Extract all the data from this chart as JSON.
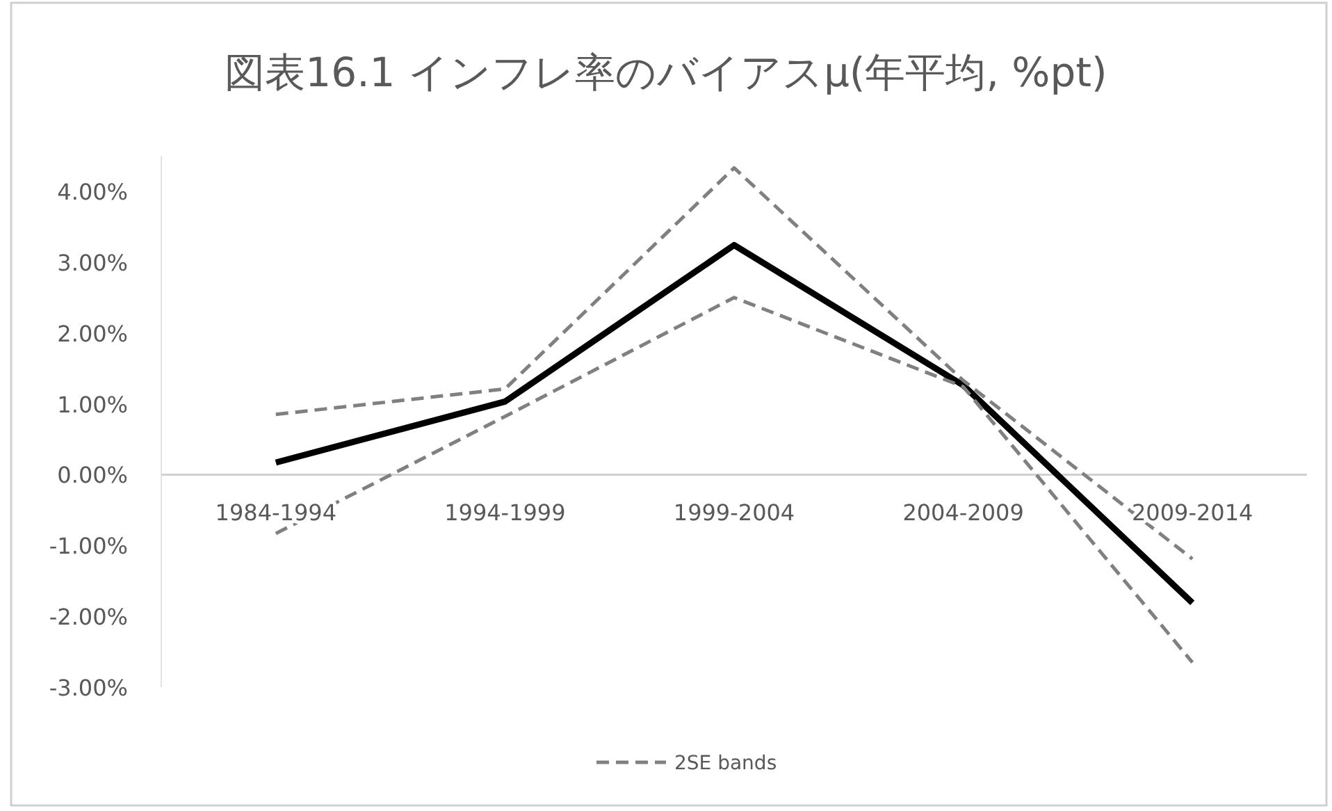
{
  "chart_data": {
    "type": "line",
    "title": "図表16.1 インフレ率のバイアスμ(年平均, %pt)",
    "categories": [
      "1984-1994",
      "1994-1999",
      "1999-2004",
      "2004-2009",
      "2009-2014"
    ],
    "series": [
      {
        "color": "#000000",
        "values": [
          0.17,
          1.03,
          3.24,
          1.26,
          -1.81
        ]
      },
      {
        "name": "2SE bands",
        "color": "#808080",
        "line_style": "dashed",
        "values": [
          0.85,
          1.21,
          4.33,
          1.33,
          -1.19
        ]
      },
      {
        "color": "#808080",
        "line_style": "dashed",
        "values": [
          -0.83,
          0.82,
          2.5,
          1.24,
          -2.65
        ]
      }
    ],
    "ylim": [
      -3,
      4.5
    ],
    "yticks": [
      {
        "value": -3,
        "label": "-3.00%"
      },
      {
        "value": -2,
        "label": "-2.00%"
      },
      {
        "value": -1,
        "label": "-1.00%"
      },
      {
        "value": 0,
        "label": "0.00%"
      },
      {
        "value": 1,
        "label": "1.00%"
      },
      {
        "value": 2,
        "label": "2.00%"
      },
      {
        "value": 3,
        "label": "3.00%"
      },
      {
        "value": 4,
        "label": "4.00%"
      }
    ],
    "grid": false,
    "legend": "bottom"
  }
}
